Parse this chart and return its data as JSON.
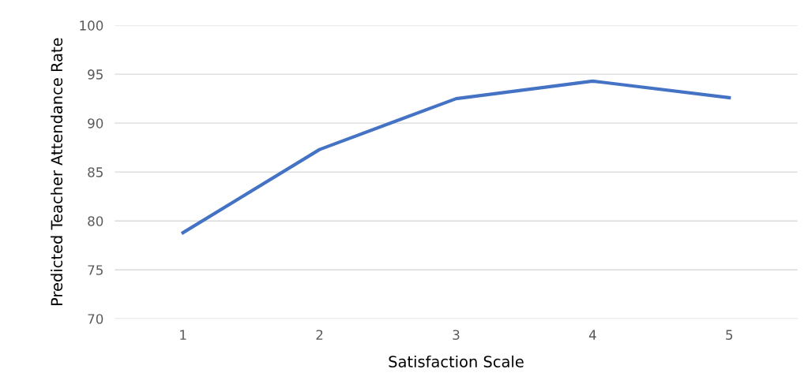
{
  "chart_data": {
    "type": "line",
    "xlabel": "Satisfaction Scale",
    "ylabel": "Predicted Teacher Attendance Rate",
    "categories": [
      "1",
      "2",
      "3",
      "4",
      "5"
    ],
    "series": [
      {
        "color": "#4472c4",
        "values": [
          78.8,
          87.3,
          92.5,
          94.3,
          92.6
        ]
      }
    ],
    "ylim": [
      70,
      100
    ],
    "yticks": [
      70,
      75,
      80,
      85,
      90,
      95,
      100
    ],
    "grid": "y",
    "marker": "none",
    "line_style": "solid"
  }
}
